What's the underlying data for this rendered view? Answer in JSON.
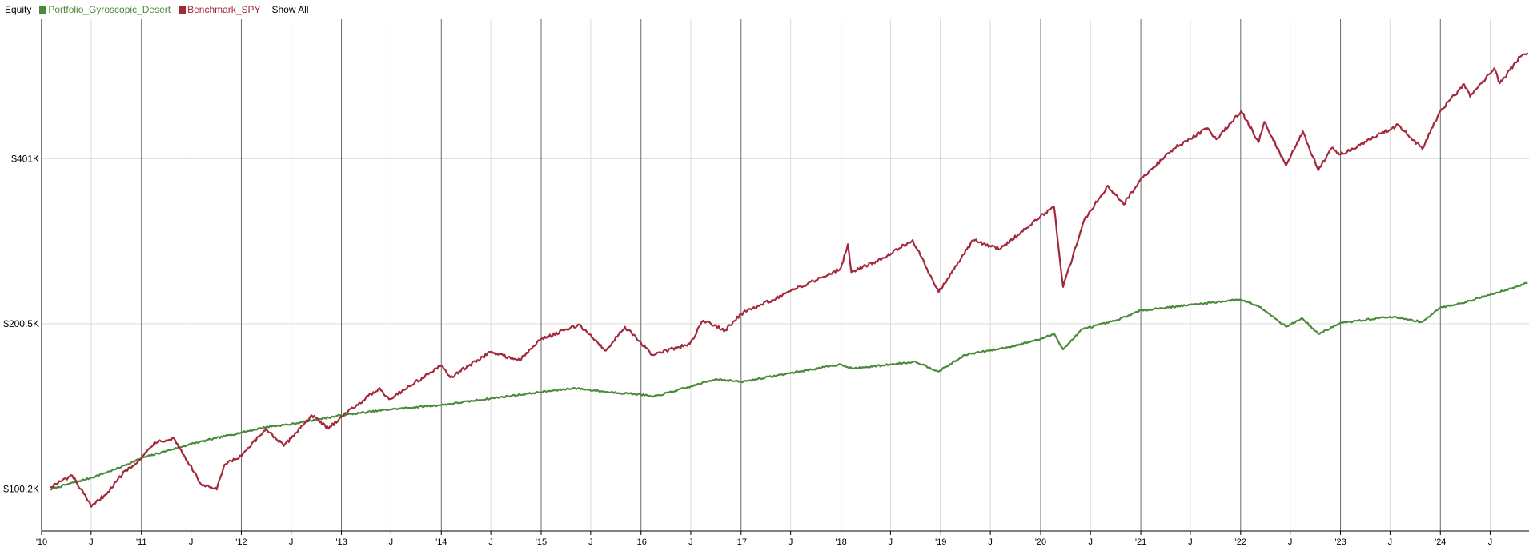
{
  "legend": {
    "title": "Equity",
    "show_all": "Show All"
  },
  "chart_data": {
    "type": "line",
    "title": "Equity",
    "xlabel": "",
    "ylabel": "",
    "y_scale": "log",
    "xlim": [
      "2010-01-01",
      "2024-11-20"
    ],
    "ylim": [
      84000,
      720000
    ],
    "grid": true,
    "legend_position": "top-left",
    "y_ticks": [
      {
        "value": 100200,
        "label": "$100.2K"
      },
      {
        "value": 200500,
        "label": "$200.5K"
      },
      {
        "value": 401000,
        "label": "$401K"
      }
    ],
    "x_ticks": [
      {
        "date": "2010-01-01",
        "label": "'10",
        "major": true
      },
      {
        "date": "2010-07-01",
        "label": "J",
        "major": false
      },
      {
        "date": "2011-01-01",
        "label": "'11",
        "major": true
      },
      {
        "date": "2011-07-01",
        "label": "J",
        "major": false
      },
      {
        "date": "2012-01-01",
        "label": "'12",
        "major": true
      },
      {
        "date": "2012-07-01",
        "label": "J",
        "major": false
      },
      {
        "date": "2013-01-01",
        "label": "'13",
        "major": true
      },
      {
        "date": "2013-07-01",
        "label": "J",
        "major": false
      },
      {
        "date": "2014-01-01",
        "label": "'14",
        "major": true
      },
      {
        "date": "2014-07-01",
        "label": "J",
        "major": false
      },
      {
        "date": "2015-01-01",
        "label": "'15",
        "major": true
      },
      {
        "date": "2015-07-01",
        "label": "J",
        "major": false
      },
      {
        "date": "2016-01-01",
        "label": "'16",
        "major": true
      },
      {
        "date": "2016-07-01",
        "label": "J",
        "major": false
      },
      {
        "date": "2017-01-01",
        "label": "'17",
        "major": true
      },
      {
        "date": "2017-07-01",
        "label": "J",
        "major": false
      },
      {
        "date": "2018-01-01",
        "label": "'18",
        "major": true
      },
      {
        "date": "2018-07-01",
        "label": "J",
        "major": false
      },
      {
        "date": "2019-01-01",
        "label": "'19",
        "major": true
      },
      {
        "date": "2019-07-01",
        "label": "J",
        "major": false
      },
      {
        "date": "2020-01-01",
        "label": "'20",
        "major": true
      },
      {
        "date": "2020-07-01",
        "label": "J",
        "major": false
      },
      {
        "date": "2021-01-01",
        "label": "'21",
        "major": true
      },
      {
        "date": "2021-07-01",
        "label": "J",
        "major": false
      },
      {
        "date": "2022-01-01",
        "label": "'22",
        "major": true
      },
      {
        "date": "2022-07-01",
        "label": "J",
        "major": false
      },
      {
        "date": "2023-01-01",
        "label": "'23",
        "major": true
      },
      {
        "date": "2023-07-01",
        "label": "J",
        "major": false
      },
      {
        "date": "2024-01-01",
        "label": "'24",
        "major": true
      },
      {
        "date": "2024-07-01",
        "label": "J",
        "major": false
      }
    ],
    "series": [
      {
        "name": "Portfolio_Gyroscopic_Desert",
        "color": "#4a8a3a",
        "points": [
          [
            "2010-02-01",
            100000
          ],
          [
            "2010-04-15",
            102500
          ],
          [
            "2010-07-01",
            105000
          ],
          [
            "2010-10-01",
            109000
          ],
          [
            "2011-01-01",
            114000
          ],
          [
            "2011-04-01",
            117500
          ],
          [
            "2011-07-01",
            121000
          ],
          [
            "2011-10-01",
            124000
          ],
          [
            "2012-01-01",
            127000
          ],
          [
            "2012-04-01",
            130000
          ],
          [
            "2012-07-01",
            131500
          ],
          [
            "2012-10-01",
            134000
          ],
          [
            "2013-01-01",
            136500
          ],
          [
            "2013-07-01",
            140000
          ],
          [
            "2014-01-01",
            142500
          ],
          [
            "2014-07-01",
            146500
          ],
          [
            "2015-01-01",
            150500
          ],
          [
            "2015-05-01",
            153000
          ],
          [
            "2015-09-01",
            150500
          ],
          [
            "2016-01-01",
            149000
          ],
          [
            "2016-02-15",
            147500
          ],
          [
            "2016-07-01",
            154000
          ],
          [
            "2016-10-01",
            159000
          ],
          [
            "2017-01-01",
            157000
          ],
          [
            "2017-07-01",
            163000
          ],
          [
            "2018-01-01",
            169000
          ],
          [
            "2018-02-15",
            166000
          ],
          [
            "2018-07-01",
            169000
          ],
          [
            "2018-10-01",
            171000
          ],
          [
            "2018-12-24",
            164000
          ],
          [
            "2019-04-01",
            176000
          ],
          [
            "2019-09-01",
            181500
          ],
          [
            "2020-01-01",
            188000
          ],
          [
            "2020-02-20",
            192000
          ],
          [
            "2020-03-23",
            180000
          ],
          [
            "2020-06-01",
            196000
          ],
          [
            "2020-10-01",
            203000
          ],
          [
            "2021-01-01",
            212000
          ],
          [
            "2021-07-01",
            217000
          ],
          [
            "2022-01-01",
            222000
          ],
          [
            "2022-03-15",
            215000
          ],
          [
            "2022-06-16",
            198000
          ],
          [
            "2022-08-15",
            205000
          ],
          [
            "2022-10-12",
            192000
          ],
          [
            "2023-01-01",
            201000
          ],
          [
            "2023-07-01",
            206500
          ],
          [
            "2023-10-27",
            202000
          ],
          [
            "2024-01-01",
            214500
          ],
          [
            "2024-04-01",
            219500
          ],
          [
            "2024-07-01",
            226500
          ],
          [
            "2024-10-01",
            234000
          ],
          [
            "2024-11-15",
            238000
          ]
        ]
      },
      {
        "name": "Benchmark_SPY",
        "color": "#a3283b",
        "points": [
          [
            "2010-02-01",
            101000
          ],
          [
            "2010-04-23",
            106000
          ],
          [
            "2010-07-02",
            93000
          ],
          [
            "2010-09-01",
            99000
          ],
          [
            "2010-11-01",
            108000
          ],
          [
            "2011-01-01",
            114000
          ],
          [
            "2011-02-18",
            122000
          ],
          [
            "2011-04-29",
            124000
          ],
          [
            "2011-08-08",
            102000
          ],
          [
            "2011-10-03",
            100000
          ],
          [
            "2011-11-01",
            111000
          ],
          [
            "2012-01-01",
            115000
          ],
          [
            "2012-04-01",
            129000
          ],
          [
            "2012-06-04",
            120000
          ],
          [
            "2012-09-14",
            136500
          ],
          [
            "2012-11-15",
            129000
          ],
          [
            "2013-01-01",
            136000
          ],
          [
            "2013-05-21",
            153000
          ],
          [
            "2013-06-24",
            146000
          ],
          [
            "2013-12-31",
            168000
          ],
          [
            "2014-02-03",
            160000
          ],
          [
            "2014-06-30",
            178000
          ],
          [
            "2014-10-15",
            172000
          ],
          [
            "2014-12-31",
            188000
          ],
          [
            "2015-05-21",
            199500
          ],
          [
            "2015-08-25",
            179000
          ],
          [
            "2015-11-03",
            198000
          ],
          [
            "2016-02-11",
            176000
          ],
          [
            "2016-06-27",
            184000
          ],
          [
            "2016-08-15",
            203000
          ],
          [
            "2016-11-04",
            195000
          ],
          [
            "2017-01-01",
            209000
          ],
          [
            "2017-06-01",
            226000
          ],
          [
            "2017-12-31",
            253000
          ],
          [
            "2018-01-26",
            280000
          ],
          [
            "2018-02-08",
            249000
          ],
          [
            "2018-06-01",
            264000
          ],
          [
            "2018-09-20",
            285000
          ],
          [
            "2018-12-24",
            229000
          ],
          [
            "2019-04-30",
            285000
          ],
          [
            "2019-08-05",
            274000
          ],
          [
            "2019-12-31",
            315000
          ],
          [
            "2020-02-19",
            327000
          ],
          [
            "2020-03-23",
            234000
          ],
          [
            "2020-06-08",
            310000
          ],
          [
            "2020-09-02",
            358000
          ],
          [
            "2020-10-30",
            331000
          ],
          [
            "2021-01-01",
            368000
          ],
          [
            "2021-04-30",
            418000
          ],
          [
            "2021-09-02",
            456000
          ],
          [
            "2021-10-04",
            435000
          ],
          [
            "2022-01-03",
            490000
          ],
          [
            "2022-03-08",
            430000
          ],
          [
            "2022-03-29",
            468000
          ],
          [
            "2022-06-16",
            390000
          ],
          [
            "2022-08-16",
            450000
          ],
          [
            "2022-10-12",
            382000
          ],
          [
            "2022-12-01",
            420000
          ],
          [
            "2023-01-01",
            408000
          ],
          [
            "2023-07-31",
            462000
          ],
          [
            "2023-10-27",
            418000
          ],
          [
            "2024-01-01",
            490000
          ],
          [
            "2024-03-28",
            548000
          ],
          [
            "2024-04-19",
            520000
          ],
          [
            "2024-07-16",
            586000
          ],
          [
            "2024-08-05",
            550000
          ],
          [
            "2024-10-18",
            615000
          ],
          [
            "2024-11-15",
            626000
          ]
        ]
      }
    ]
  }
}
